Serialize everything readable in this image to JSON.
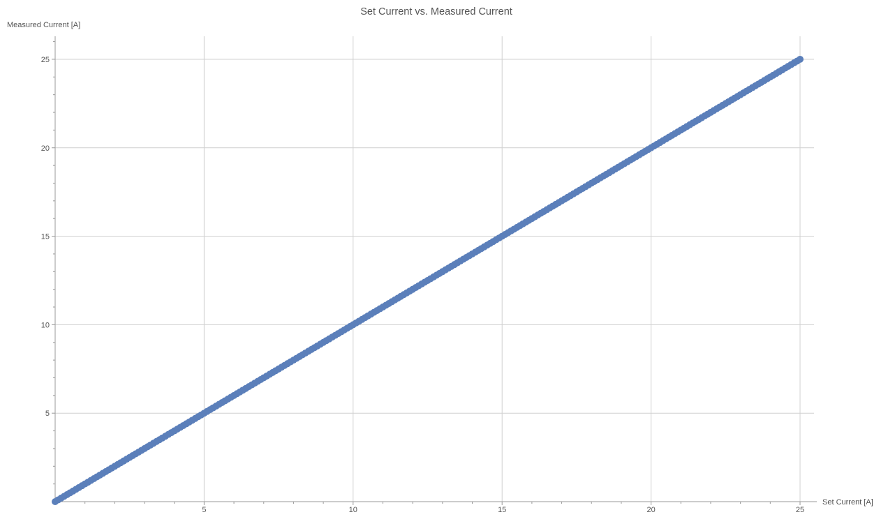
{
  "chart_data": {
    "type": "scatter",
    "title": "Set Current vs. Measured Current",
    "xlabel": "Set Current [A]",
    "ylabel": "Measured Current [A]",
    "xlim": [
      0,
      25
    ],
    "ylim": [
      0,
      26.3
    ],
    "x_ticks": [
      5,
      10,
      15,
      20,
      25
    ],
    "y_ticks": [
      5,
      10,
      15,
      20,
      25
    ],
    "x_tick_labels": [
      "5",
      "10",
      "15",
      "20",
      "25"
    ],
    "y_tick_labels": [
      "5",
      "10",
      "15",
      "20",
      "25"
    ],
    "grid": true,
    "series": [
      {
        "color": "#5b7fba",
        "x_start": 0,
        "x_end": 25,
        "x_step": 0.1,
        "slope": 1.0,
        "intercept": 0.0
      }
    ]
  }
}
